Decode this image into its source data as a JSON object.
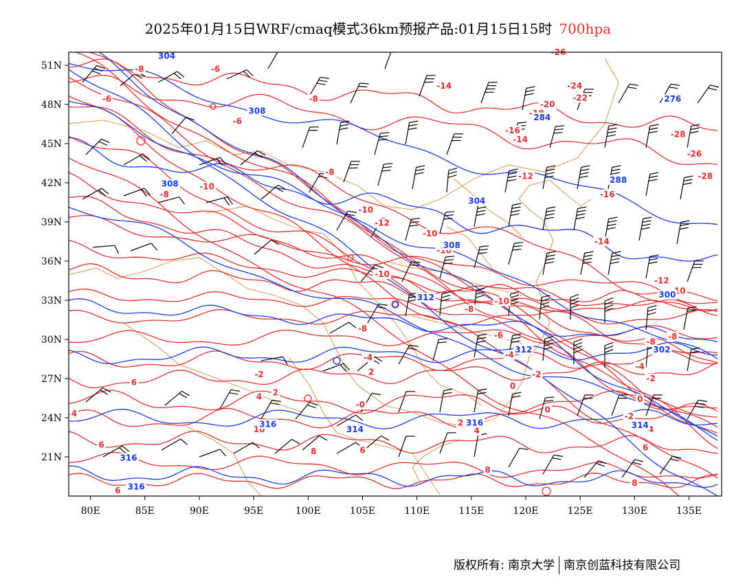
{
  "title": {
    "main": "2025年01月15日WRF/cmaq模式36km预报产品:01月15日15时",
    "level": "700hpa"
  },
  "colors": {
    "height": "#1a3ae6",
    "temperature": "#e03030",
    "borders": "#d98a3a",
    "wind": "#000000",
    "level_title": "#e03030"
  },
  "axes": {
    "lon_labels": [
      "80E",
      "85E",
      "90E",
      "95E",
      "100E",
      "105E",
      "110E",
      "115E",
      "120E",
      "125E",
      "130E",
      "135E"
    ],
    "lat_labels": [
      "51N",
      "48N",
      "45N",
      "42N",
      "39N",
      "36N",
      "33N",
      "30N",
      "27N",
      "24N",
      "21N"
    ],
    "lon_values": [
      80,
      85,
      90,
      95,
      100,
      105,
      110,
      115,
      120,
      125,
      130,
      135
    ],
    "lat_values": [
      51,
      48,
      45,
      42,
      39,
      36,
      33,
      30,
      27,
      24,
      21
    ],
    "lon_range": [
      78,
      138
    ],
    "lat_range": [
      18,
      52
    ]
  },
  "contour_labels": {
    "temperature": [
      {
        "text": "-8",
        "lon": 84.5,
        "lat": 50.5
      },
      {
        "text": "-6",
        "lon": 91.5,
        "lat": 50.5
      },
      {
        "text": "-6",
        "lon": 81.5,
        "lat": 48.2
      },
      {
        "text": "-8",
        "lon": 100.5,
        "lat": 48.2
      },
      {
        "text": "-6",
        "lon": 93.5,
        "lat": 46.5
      },
      {
        "text": "-14",
        "lon": 112.5,
        "lat": 49.2
      },
      {
        "text": "-26",
        "lon": 123.0,
        "lat": 51.8
      },
      {
        "text": "-24",
        "lon": 124.5,
        "lat": 49.2
      },
      {
        "text": "-22",
        "lon": 125.0,
        "lat": 48.3
      },
      {
        "text": "-20",
        "lon": 122.0,
        "lat": 47.8
      },
      {
        "text": "-18",
        "lon": 121.0,
        "lat": 47.1
      },
      {
        "text": "-16",
        "lon": 118.8,
        "lat": 45.8
      },
      {
        "text": "-14",
        "lon": 119.5,
        "lat": 45.1
      },
      {
        "text": "-28",
        "lon": 134.0,
        "lat": 45.5
      },
      {
        "text": "-26",
        "lon": 135.5,
        "lat": 44.0
      },
      {
        "text": "-28",
        "lon": 136.5,
        "lat": 42.3
      },
      {
        "text": "-12",
        "lon": 120.0,
        "lat": 42.3
      },
      {
        "text": "-16",
        "lon": 127.5,
        "lat": 40.9
      },
      {
        "text": "-8",
        "lon": 102.0,
        "lat": 42.6
      },
      {
        "text": "-10",
        "lon": 90.7,
        "lat": 41.5
      },
      {
        "text": "-8",
        "lon": 86.8,
        "lat": 40.9
      },
      {
        "text": "-10",
        "lon": 105.3,
        "lat": 39.7
      },
      {
        "text": "-12",
        "lon": 106.8,
        "lat": 38.7
      },
      {
        "text": "-10",
        "lon": 111.2,
        "lat": 37.9
      },
      {
        "text": "-14",
        "lon": 127.0,
        "lat": 37.3
      },
      {
        "text": "-10",
        "lon": 112.5,
        "lat": 36.6
      },
      {
        "text": "-10",
        "lon": 106.8,
        "lat": 34.8
      },
      {
        "text": "-12",
        "lon": 132.5,
        "lat": 34.3
      },
      {
        "text": "-10",
        "lon": 134.0,
        "lat": 33.5
      },
      {
        "text": "-10",
        "lon": 117.8,
        "lat": 32.7
      },
      {
        "text": "-8",
        "lon": 114.8,
        "lat": 32.1
      },
      {
        "text": "-8",
        "lon": 105.0,
        "lat": 30.6
      },
      {
        "text": "-6",
        "lon": 117.5,
        "lat": 30.1
      },
      {
        "text": "-8",
        "lon": 131.5,
        "lat": 29.6
      },
      {
        "text": "-8",
        "lon": 133.5,
        "lat": 30.0
      },
      {
        "text": "-4",
        "lon": 105.5,
        "lat": 28.4
      },
      {
        "text": "-4",
        "lon": 118.5,
        "lat": 28.6
      },
      {
        "text": "2",
        "lon": 105.8,
        "lat": 27.3
      },
      {
        "text": "-2",
        "lon": 121.0,
        "lat": 27.1
      },
      {
        "text": "-4",
        "lon": 130.5,
        "lat": 27.7
      },
      {
        "text": "-2",
        "lon": 131.5,
        "lat": 26.8
      },
      {
        "text": "-2",
        "lon": 95.5,
        "lat": 27.1
      },
      {
        "text": "0",
        "lon": 118.8,
        "lat": 26.2
      },
      {
        "text": "2",
        "lon": 97.0,
        "lat": 25.7
      },
      {
        "text": "4",
        "lon": 95.5,
        "lat": 25.4
      },
      {
        "text": "6",
        "lon": 84.0,
        "lat": 26.5
      },
      {
        "text": "0",
        "lon": 130.5,
        "lat": 25.2
      },
      {
        "text": "-0",
        "lon": 104.8,
        "lat": 24.8
      },
      {
        "text": "0",
        "lon": 122.0,
        "lat": 24.4
      },
      {
        "text": "2",
        "lon": 114.0,
        "lat": 23.4
      },
      {
        "text": "-2",
        "lon": 129.5,
        "lat": 23.9
      },
      {
        "text": "4",
        "lon": 78.5,
        "lat": 24.1
      },
      {
        "text": "10",
        "lon": 95.5,
        "lat": 22.9
      },
      {
        "text": "4",
        "lon": 115.5,
        "lat": 22.8
      },
      {
        "text": "4",
        "lon": 131.5,
        "lat": 22.9
      },
      {
        "text": "6",
        "lon": 81.0,
        "lat": 21.7
      },
      {
        "text": "6",
        "lon": 105.0,
        "lat": 21.3
      },
      {
        "text": "8",
        "lon": 100.5,
        "lat": 21.2
      },
      {
        "text": "6",
        "lon": 131.0,
        "lat": 21.5
      },
      {
        "text": "8",
        "lon": 116.5,
        "lat": 19.8
      },
      {
        "text": "8",
        "lon": 130.0,
        "lat": 18.8
      },
      {
        "text": "6",
        "lon": 82.5,
        "lat": 18.2
      }
    ],
    "height": [
      {
        "text": "304",
        "lon": 87.0,
        "lat": 51.5
      },
      {
        "text": "308",
        "lon": 95.3,
        "lat": 47.3
      },
      {
        "text": "276",
        "lon": 133.5,
        "lat": 48.2
      },
      {
        "text": "284",
        "lon": 121.5,
        "lat": 46.8
      },
      {
        "text": "288",
        "lon": 128.5,
        "lat": 42.0
      },
      {
        "text": "304",
        "lon": 115.5,
        "lat": 40.4
      },
      {
        "text": "308",
        "lon": 87.3,
        "lat": 41.7
      },
      {
        "text": "308",
        "lon": 113.2,
        "lat": 37.0
      },
      {
        "text": "312",
        "lon": 110.8,
        "lat": 33.0
      },
      {
        "text": "300",
        "lon": 133.0,
        "lat": 33.2
      },
      {
        "text": "312",
        "lon": 119.8,
        "lat": 29.0
      },
      {
        "text": "302",
        "lon": 132.5,
        "lat": 29.0
      },
      {
        "text": "316",
        "lon": 96.3,
        "lat": 23.3
      },
      {
        "text": "314",
        "lon": 104.3,
        "lat": 22.9
      },
      {
        "text": "316",
        "lon": 115.3,
        "lat": 23.4
      },
      {
        "text": "314",
        "lon": 130.5,
        "lat": 23.2
      },
      {
        "text": "316",
        "lon": 83.5,
        "lat": 20.7
      },
      {
        "text": "316",
        "lon": 84.2,
        "lat": 18.5
      }
    ]
  },
  "footer": {
    "left": "版权所有: 南京大学",
    "right": "南京创蓝科技有限公司"
  }
}
